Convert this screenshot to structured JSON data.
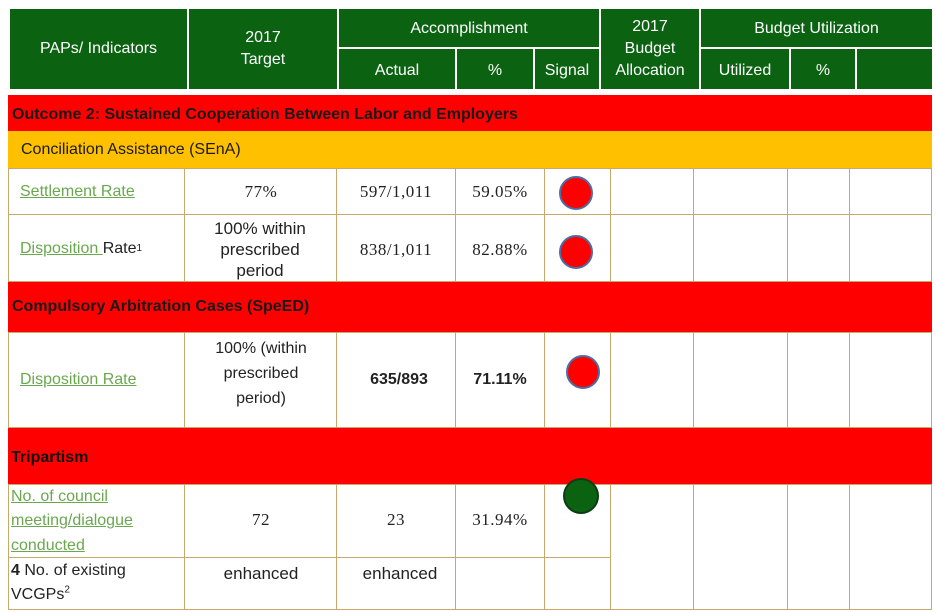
{
  "header": {
    "paps": "PAPs/ Indicators",
    "target": "2017\nTarget",
    "accomplishment": "Accomplishment",
    "actual": "Actual",
    "pct": "%",
    "signal": "Signal",
    "budget_allocation": "2017\nBudget\nAllocation",
    "budget_utilization": "Budget Utilization",
    "utilized": "Utilized",
    "util_pct": "%"
  },
  "outcome": "Outcome 2: Sustained Cooperation Between Labor and Employers",
  "sena": {
    "title": "Conciliation Assistance (SEnA)",
    "rows": [
      {
        "indicator": "Settlement Rate",
        "target": "77%",
        "actual": "597/1,011",
        "pct": "59.05%",
        "signal": "red"
      },
      {
        "indicator_link": "Disposition ",
        "indicator_rest": "Rate",
        "sup": "1",
        "target": "100% within prescribed period",
        "actual": "838/1,011",
        "pct": "82.88%",
        "signal": "red"
      }
    ]
  },
  "speed": {
    "title": "Compulsory Arbitration Cases (SpeED)",
    "rows": [
      {
        "indicator": "Disposition Rate",
        "target_a": "100% (within",
        "target_b": "prescribed",
        "target_c": "period)",
        "actual": "635/893",
        "pct": "71.11%",
        "signal": "red"
      }
    ]
  },
  "tripartism": {
    "title": "Tripartism",
    "rows": [
      {
        "indicator": "No. of council meeting/dialogue conducted",
        "target": "72",
        "actual": "23",
        "pct": "31.94%",
        "signal": "green"
      },
      {
        "indicator_bold": "4",
        "indicator_rest": " No. of existing VCGPs",
        "sup": "2",
        "target": "enhanced",
        "actual": "enhanced"
      }
    ]
  },
  "colors": {
    "header_green": "#0b6312",
    "outcome_red": "#ff0000",
    "section_yellow": "#ffc000",
    "signal_red": "#ff0000",
    "signal_green": "#0b6312",
    "link_green": "#6aa84f"
  }
}
